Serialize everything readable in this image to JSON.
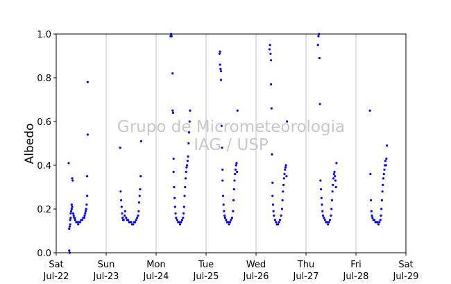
{
  "chart_data": {
    "type": "scatter",
    "title": "",
    "xlabel": "",
    "ylabel": "Albedo",
    "watermark": [
      "Grupo de Micrometeorologia",
      "IAG / USP"
    ],
    "xlim": [
      0,
      7
    ],
    "ylim": [
      0,
      1
    ],
    "x_ticks": [
      {
        "x": 0,
        "day": "Sat",
        "date": "Jul-22"
      },
      {
        "x": 1,
        "day": "Sun",
        "date": "Jul-23"
      },
      {
        "x": 2,
        "day": "Mon",
        "date": "Jul-24"
      },
      {
        "x": 3,
        "day": "Tue",
        "date": "Jul-25"
      },
      {
        "x": 4,
        "day": "Wed",
        "date": "Jul-26"
      },
      {
        "x": 5,
        "day": "Thu",
        "date": "Jul-27"
      },
      {
        "x": 6,
        "day": "Fri",
        "date": "Jul-28"
      },
      {
        "x": 7,
        "day": "Sat",
        "date": "Jul-29"
      }
    ],
    "y_ticks": [
      "0.0",
      "0.2",
      "0.4",
      "0.6",
      "0.8",
      "1.0"
    ],
    "y_tick_values": [
      0,
      0.2,
      0.4,
      0.6,
      0.8,
      1.0
    ],
    "grid": "vertical at day boundaries",
    "marker_color": "#0000ff",
    "series": [
      {
        "values": [
          [
            0.25,
            0.41
          ],
          [
            0.26,
            0.01
          ],
          [
            0.27,
            0.0
          ],
          [
            0.26,
            0.11
          ],
          [
            0.27,
            0.12
          ],
          [
            0.28,
            0.13
          ],
          [
            0.28,
            0.15
          ],
          [
            0.29,
            0.16
          ],
          [
            0.29,
            0.18
          ],
          [
            0.3,
            0.19
          ],
          [
            0.31,
            0.2
          ],
          [
            0.31,
            0.22
          ],
          [
            0.32,
            0.21
          ],
          [
            0.32,
            0.34
          ],
          [
            0.33,
            0.33
          ],
          [
            0.34,
            0.18
          ],
          [
            0.35,
            0.17
          ],
          [
            0.36,
            0.16
          ],
          [
            0.37,
            0.16
          ],
          [
            0.38,
            0.15
          ],
          [
            0.4,
            0.14
          ],
          [
            0.42,
            0.14
          ],
          [
            0.44,
            0.13
          ],
          [
            0.46,
            0.14
          ],
          [
            0.48,
            0.14
          ],
          [
            0.5,
            0.15
          ],
          [
            0.52,
            0.15
          ],
          [
            0.54,
            0.16
          ],
          [
            0.56,
            0.16
          ],
          [
            0.57,
            0.17
          ],
          [
            0.58,
            0.18
          ],
          [
            0.59,
            0.19
          ],
          [
            0.6,
            0.2
          ],
          [
            0.61,
            0.22
          ],
          [
            0.62,
            0.26
          ],
          [
            0.62,
            0.35
          ],
          [
            0.63,
            0.54
          ],
          [
            0.63,
            0.78
          ],
          [
            1.28,
            0.48
          ],
          [
            1.29,
            0.28
          ],
          [
            1.3,
            0.24
          ],
          [
            1.31,
            0.21
          ],
          [
            1.32,
            0.18
          ],
          [
            1.33,
            0.16
          ],
          [
            1.34,
            0.15
          ],
          [
            1.35,
            0.15
          ],
          [
            1.37,
            0.17
          ],
          [
            1.38,
            0.19
          ],
          [
            1.4,
            0.16
          ],
          [
            1.42,
            0.15
          ],
          [
            1.44,
            0.15
          ],
          [
            1.46,
            0.14
          ],
          [
            1.48,
            0.14
          ],
          [
            1.5,
            0.14
          ],
          [
            1.52,
            0.13
          ],
          [
            1.54,
            0.13
          ],
          [
            1.56,
            0.14
          ],
          [
            1.58,
            0.14
          ],
          [
            1.6,
            0.15
          ],
          [
            1.62,
            0.16
          ],
          [
            1.64,
            0.17
          ],
          [
            1.65,
            0.19
          ],
          [
            1.66,
            0.23
          ],
          [
            1.67,
            0.26
          ],
          [
            1.68,
            0.29
          ],
          [
            1.69,
            0.35
          ],
          [
            1.7,
            0.51
          ],
          [
            2.29,
            0.99
          ],
          [
            2.3,
            1.0
          ],
          [
            2.31,
            0.99
          ],
          [
            2.33,
            0.82
          ],
          [
            2.33,
            0.65
          ],
          [
            2.34,
            0.64
          ],
          [
            2.35,
            0.43
          ],
          [
            2.35,
            0.37
          ],
          [
            2.36,
            0.3
          ],
          [
            2.37,
            0.25
          ],
          [
            2.38,
            0.21
          ],
          [
            2.39,
            0.18
          ],
          [
            2.4,
            0.16
          ],
          [
            2.42,
            0.15
          ],
          [
            2.44,
            0.14
          ],
          [
            2.46,
            0.14
          ],
          [
            2.48,
            0.13
          ],
          [
            2.5,
            0.14
          ],
          [
            2.52,
            0.15
          ],
          [
            2.54,
            0.16
          ],
          [
            2.55,
            0.18
          ],
          [
            2.56,
            0.21
          ],
          [
            2.57,
            0.26
          ],
          [
            2.58,
            0.3
          ],
          [
            2.59,
            0.34
          ],
          [
            2.6,
            0.37
          ],
          [
            2.61,
            0.39
          ],
          [
            2.62,
            0.4
          ],
          [
            2.63,
            0.42
          ],
          [
            2.64,
            0.44
          ],
          [
            2.65,
            0.5
          ],
          [
            2.66,
            0.55
          ],
          [
            2.67,
            0.6
          ],
          [
            2.68,
            0.65
          ],
          [
            3.27,
            0.91
          ],
          [
            3.28,
            0.92
          ],
          [
            3.28,
            0.86
          ],
          [
            3.29,
            0.84
          ],
          [
            3.3,
            0.83
          ],
          [
            3.3,
            0.79
          ],
          [
            3.31,
            0.58
          ],
          [
            3.32,
            0.48
          ],
          [
            3.33,
            0.38
          ],
          [
            3.33,
            0.33
          ],
          [
            3.34,
            0.26
          ],
          [
            3.35,
            0.22
          ],
          [
            3.36,
            0.19
          ],
          [
            3.37,
            0.17
          ],
          [
            3.38,
            0.16
          ],
          [
            3.4,
            0.15
          ],
          [
            3.42,
            0.14
          ],
          [
            3.44,
            0.14
          ],
          [
            3.46,
            0.13
          ],
          [
            3.48,
            0.14
          ],
          [
            3.5,
            0.15
          ],
          [
            3.52,
            0.16
          ],
          [
            3.54,
            0.19
          ],
          [
            3.55,
            0.24
          ],
          [
            3.56,
            0.29
          ],
          [
            3.57,
            0.33
          ],
          [
            3.58,
            0.36
          ],
          [
            3.59,
            0.38
          ],
          [
            3.6,
            0.4
          ],
          [
            3.61,
            0.41
          ],
          [
            3.62,
            0.37
          ],
          [
            3.63,
            0.65
          ],
          [
            4.27,
            0.93
          ],
          [
            4.28,
            0.95
          ],
          [
            4.29,
            0.91
          ],
          [
            4.3,
            0.88
          ],
          [
            4.3,
            0.77
          ],
          [
            4.31,
            0.66
          ],
          [
            4.32,
            0.45
          ],
          [
            4.33,
            0.32
          ],
          [
            4.33,
            0.26
          ],
          [
            4.34,
            0.22
          ],
          [
            4.35,
            0.19
          ],
          [
            4.36,
            0.17
          ],
          [
            4.38,
            0.15
          ],
          [
            4.4,
            0.14
          ],
          [
            4.42,
            0.13
          ],
          [
            4.44,
            0.13
          ],
          [
            4.46,
            0.14
          ],
          [
            4.48,
            0.15
          ],
          [
            4.5,
            0.17
          ],
          [
            4.52,
            0.2
          ],
          [
            4.53,
            0.24
          ],
          [
            4.54,
            0.28
          ],
          [
            4.55,
            0.31
          ],
          [
            4.56,
            0.34
          ],
          [
            4.57,
            0.36
          ],
          [
            4.58,
            0.38
          ],
          [
            4.59,
            0.39
          ],
          [
            4.6,
            0.4
          ],
          [
            4.61,
            0.35
          ],
          [
            4.62,
            0.6
          ],
          [
            5.24,
            0.95
          ],
          [
            5.25,
            0.99
          ],
          [
            5.26,
            1.0
          ],
          [
            5.27,
            0.89
          ],
          [
            5.28,
            0.68
          ],
          [
            5.29,
            0.33
          ],
          [
            5.3,
            0.29
          ],
          [
            5.31,
            0.25
          ],
          [
            5.32,
            0.22
          ],
          [
            5.33,
            0.19
          ],
          [
            5.34,
            0.17
          ],
          [
            5.36,
            0.16
          ],
          [
            5.38,
            0.15
          ],
          [
            5.4,
            0.14
          ],
          [
            5.42,
            0.14
          ],
          [
            5.44,
            0.13
          ],
          [
            5.46,
            0.14
          ],
          [
            5.48,
            0.15
          ],
          [
            5.5,
            0.17
          ],
          [
            5.51,
            0.2
          ],
          [
            5.52,
            0.24
          ],
          [
            5.53,
            0.28
          ],
          [
            5.54,
            0.31
          ],
          [
            5.55,
            0.34
          ],
          [
            5.56,
            0.36
          ],
          [
            5.57,
            0.37
          ],
          [
            5.58,
            0.35
          ],
          [
            5.59,
            0.33
          ],
          [
            5.6,
            0.3
          ],
          [
            5.61,
            0.41
          ],
          [
            6.28,
            0.65
          ],
          [
            6.29,
            0.36
          ],
          [
            6.3,
            0.24
          ],
          [
            6.31,
            0.19
          ],
          [
            6.32,
            0.17
          ],
          [
            6.33,
            0.16
          ],
          [
            6.35,
            0.15
          ],
          [
            6.37,
            0.15
          ],
          [
            6.39,
            0.14
          ],
          [
            6.41,
            0.14
          ],
          [
            6.43,
            0.14
          ],
          [
            6.45,
            0.13
          ],
          [
            6.47,
            0.14
          ],
          [
            6.49,
            0.15
          ],
          [
            6.5,
            0.17
          ],
          [
            6.51,
            0.2
          ],
          [
            6.52,
            0.24
          ],
          [
            6.53,
            0.28
          ],
          [
            6.54,
            0.31
          ],
          [
            6.55,
            0.34
          ],
          [
            6.56,
            0.36
          ],
          [
            6.57,
            0.38
          ],
          [
            6.58,
            0.4
          ],
          [
            6.59,
            0.42
          ],
          [
            6.6,
            0.4
          ],
          [
            6.61,
            0.43
          ],
          [
            6.62,
            0.49
          ]
        ]
      }
    ]
  }
}
